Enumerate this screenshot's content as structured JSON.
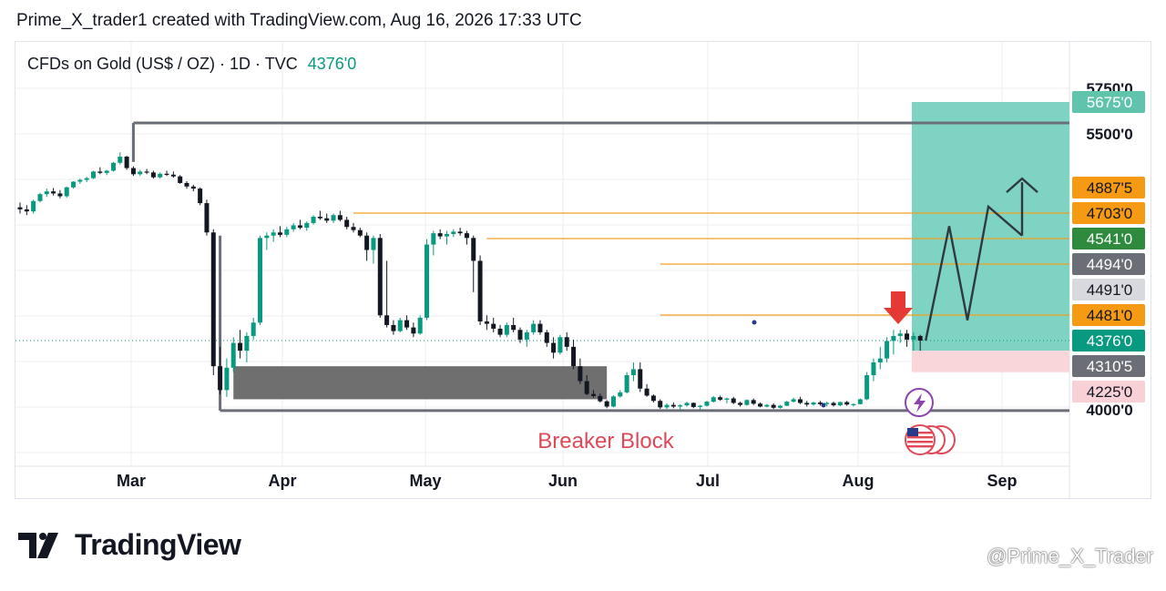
{
  "header": {
    "caption": "Prime_X_trader1 created with TradingView.com, Aug 16, 2026 17:33 UTC"
  },
  "symbol": {
    "name": "CFDs on Gold (US$ / OZ) · 1D · TVC",
    "last_price": "4376'0"
  },
  "annotation": {
    "breaker_label": "Breaker Block"
  },
  "brand": {
    "name": "TradingView",
    "watermark": "@Prime_X_Trader"
  },
  "colors": {
    "up": "#089981",
    "down": "#131722",
    "target_zone": "#7fd3c2",
    "stop_zone": "#f8d6d9",
    "level_line": "#f0a020",
    "breaker_text": "#e04858",
    "arrow": "#e53935"
  },
  "chart_data": {
    "type": "candlestick",
    "x_ticks": [
      "Mar",
      "Apr",
      "May",
      "Jun",
      "Jul",
      "Aug",
      "Sep"
    ],
    "y_axis_labels": [
      {
        "value": 5750,
        "text": "5750'0",
        "style": "plain"
      },
      {
        "value": 5675,
        "text": "5675'0",
        "style": "target"
      },
      {
        "value": 5500,
        "text": "5500'0",
        "style": "plain"
      },
      {
        "value": 4887.5,
        "text": "4887'5",
        "style": "orange"
      },
      {
        "value": 4703,
        "text": "4703'0",
        "style": "orange"
      },
      {
        "value": 4541,
        "text": "4541'0",
        "style": "green"
      },
      {
        "value": 4494,
        "text": "4494'0",
        "style": "gray"
      },
      {
        "value": 4491,
        "text": "4491'0",
        "style": "lightgray"
      },
      {
        "value": 4481,
        "text": "4481'0",
        "style": "orange"
      },
      {
        "value": 4376,
        "text": "4376'0",
        "style": "last"
      },
      {
        "value": 4310.5,
        "text": "4310'5",
        "style": "gray"
      },
      {
        "value": 4225,
        "text": "4225'0",
        "style": "pink"
      },
      {
        "value": 4000,
        "text": "4000'0",
        "style": "plain"
      }
    ],
    "candles": [
      [
        4745,
        4780,
        4700,
        4730
      ],
      [
        4730,
        4760,
        4690,
        4715
      ],
      [
        4715,
        4800,
        4700,
        4790
      ],
      [
        4790,
        4850,
        4780,
        4840
      ],
      [
        4840,
        4880,
        4820,
        4860
      ],
      [
        4860,
        4885,
        4830,
        4845
      ],
      [
        4845,
        4870,
        4810,
        4825
      ],
      [
        4825,
        4900,
        4815,
        4890
      ],
      [
        4890,
        4960,
        4880,
        4955
      ],
      [
        4955,
        4990,
        4930,
        4975
      ],
      [
        4975,
        5010,
        4950,
        4995
      ],
      [
        4995,
        5080,
        4985,
        5070
      ],
      [
        5070,
        5120,
        5040,
        5055
      ],
      [
        5055,
        5090,
        5030,
        5080
      ],
      [
        5080,
        5180,
        5070,
        5170
      ],
      [
        5170,
        5290,
        5150,
        5240
      ],
      [
        5240,
        5250,
        5090,
        5110
      ],
      [
        5110,
        5130,
        5020,
        5040
      ],
      [
        5040,
        5090,
        5020,
        5070
      ],
      [
        5070,
        5100,
        5040,
        5060
      ],
      [
        5060,
        5080,
        4990,
        5005
      ],
      [
        5005,
        5060,
        4990,
        5045
      ],
      [
        5045,
        5080,
        5020,
        5035
      ],
      [
        5035,
        5070,
        5000,
        5015
      ],
      [
        5015,
        5030,
        4930,
        4940
      ],
      [
        4940,
        4960,
        4880,
        4900
      ],
      [
        4900,
        4920,
        4860,
        4880
      ],
      [
        4880,
        4890,
        4760,
        4775
      ],
      [
        4775,
        4800,
        4560,
        4580
      ],
      [
        4580,
        4600,
        4280,
        4310
      ],
      [
        4310,
        4360,
        4190,
        4230
      ],
      [
        4230,
        4330,
        4160,
        4305
      ],
      [
        4305,
        4390,
        4290,
        4370
      ],
      [
        4370,
        4420,
        4330,
        4350
      ],
      [
        4350,
        4410,
        4320,
        4395
      ],
      [
        4395,
        4470,
        4380,
        4450
      ],
      [
        4450,
        4560,
        4440,
        4545
      ],
      [
        4545,
        4580,
        4520,
        4560
      ],
      [
        4560,
        4600,
        4535,
        4580
      ],
      [
        4580,
        4620,
        4550,
        4565
      ],
      [
        4565,
        4615,
        4550,
        4600
      ],
      [
        4600,
        4640,
        4585,
        4625
      ],
      [
        4625,
        4660,
        4600,
        4610
      ],
      [
        4610,
        4650,
        4590,
        4640
      ],
      [
        4640,
        4690,
        4630,
        4680
      ],
      [
        4680,
        4720,
        4660,
        4670
      ],
      [
        4670,
        4700,
        4640,
        4655
      ],
      [
        4655,
        4700,
        4640,
        4690
      ],
      [
        4690,
        4720,
        4650,
        4660
      ],
      [
        4660,
        4680,
        4600,
        4615
      ],
      [
        4615,
        4640,
        4580,
        4595
      ],
      [
        4595,
        4610,
        4550,
        4560
      ],
      [
        4560,
        4580,
        4500,
        4520
      ],
      [
        4520,
        4560,
        4495,
        4545
      ],
      [
        4545,
        4570,
        4470,
        4480
      ],
      [
        4480,
        4500,
        4430,
        4440
      ],
      [
        4440,
        4460,
        4400,
        4415
      ],
      [
        4415,
        4470,
        4410,
        4460
      ],
      [
        4460,
        4480,
        4420,
        4430
      ],
      [
        4430,
        4450,
        4390,
        4405
      ],
      [
        4405,
        4480,
        4400,
        4470
      ],
      [
        4470,
        4540,
        4460,
        4530
      ],
      [
        4530,
        4590,
        4510,
        4575
      ],
      [
        4575,
        4600,
        4540,
        4555
      ],
      [
        4555,
        4590,
        4530,
        4570
      ],
      [
        4570,
        4600,
        4550,
        4585
      ],
      [
        4585,
        4610,
        4560,
        4575
      ],
      [
        4575,
        4590,
        4530,
        4545
      ],
      [
        4545,
        4560,
        4490,
        4500
      ],
      [
        4500,
        4510,
        4440,
        4455
      ],
      [
        4455,
        4480,
        4420,
        4445
      ],
      [
        4445,
        4470,
        4410,
        4425
      ],
      [
        4425,
        4440,
        4390,
        4400
      ],
      [
        4400,
        4450,
        4390,
        4440
      ],
      [
        4440,
        4470,
        4410,
        4420
      ],
      [
        4420,
        4430,
        4370,
        4380
      ],
      [
        4380,
        4420,
        4360,
        4410
      ],
      [
        4410,
        4460,
        4400,
        4445
      ],
      [
        4445,
        4460,
        4400,
        4410
      ],
      [
        4410,
        4420,
        4360,
        4370
      ],
      [
        4370,
        4390,
        4330,
        4345
      ],
      [
        4345,
        4400,
        4340,
        4390
      ],
      [
        4390,
        4410,
        4350,
        4360
      ],
      [
        4360,
        4380,
        4300,
        4310
      ],
      [
        4310,
        4330,
        4250,
        4260
      ],
      [
        4260,
        4280,
        4180,
        4195
      ],
      [
        4195,
        4230,
        4150,
        4170
      ],
      [
        4170,
        4200,
        4090,
        4105
      ],
      [
        4105,
        4120,
        4020,
        4040
      ],
      [
        4040,
        4180,
        4030,
        4165
      ],
      [
        4165,
        4230,
        4150,
        4215
      ],
      [
        4215,
        4290,
        4200,
        4280
      ],
      [
        4280,
        4320,
        4260,
        4300
      ],
      [
        4300,
        4320,
        4220,
        4235
      ],
      [
        4235,
        4250,
        4160,
        4175
      ],
      [
        4175,
        4190,
        4090,
        4110
      ],
      [
        4110,
        4130,
        4010,
        4030
      ],
      [
        4030,
        4080,
        4010,
        4060
      ],
      [
        4060,
        4090,
        4020,
        4040
      ],
      [
        4040,
        4070,
        4000,
        4055
      ],
      [
        4055,
        4100,
        4040,
        4085
      ],
      [
        4085,
        4090,
        4020,
        4035
      ],
      [
        4035,
        4060,
        4000,
        4050
      ],
      [
        4050,
        4110,
        4040,
        4100
      ],
      [
        4100,
        4170,
        4090,
        4155
      ],
      [
        4155,
        4175,
        4110,
        4125
      ],
      [
        4125,
        4150,
        4080,
        4140
      ],
      [
        4140,
        4160,
        4070,
        4085
      ],
      [
        4085,
        4100,
        4040,
        4060
      ],
      [
        4060,
        4130,
        4050,
        4120
      ],
      [
        4120,
        4140,
        4060,
        4075
      ],
      [
        4075,
        4090,
        4030,
        4040
      ],
      [
        4040,
        4070,
        4030,
        4060
      ],
      [
        4060,
        4080,
        4010,
        4025
      ],
      [
        4025,
        4060,
        4015,
        4050
      ],
      [
        4050,
        4110,
        4045,
        4100
      ],
      [
        4100,
        4150,
        4090,
        4130
      ],
      [
        4130,
        4160,
        4070,
        4085
      ],
      [
        4085,
        4110,
        4040,
        4065
      ],
      [
        4065,
        4100,
        4050,
        4090
      ],
      [
        4090,
        4110,
        4050,
        4070
      ],
      [
        4070,
        4100,
        4040,
        4085
      ],
      [
        4085,
        4100,
        4040,
        4055
      ],
      [
        4055,
        4100,
        4045,
        4095
      ],
      [
        4095,
        4110,
        4050,
        4065
      ],
      [
        4065,
        4080,
        4040,
        4070
      ],
      [
        4070,
        4140,
        4065,
        4130
      ],
      [
        4130,
        4290,
        4120,
        4280
      ],
      [
        4280,
        4330,
        4260,
        4320
      ],
      [
        4320,
        4360,
        4300,
        4330
      ],
      [
        4330,
        4390,
        4320,
        4375
      ],
      [
        4375,
        4420,
        4340,
        4395
      ],
      [
        4395,
        4420,
        4370,
        4405
      ],
      [
        4405,
        4420,
        4360,
        4380
      ],
      [
        4380,
        4410,
        4350,
        4395
      ],
      [
        4395,
        4400,
        4350,
        4376
      ]
    ],
    "levels": [
      4703,
      4541,
      4494,
      4481
    ],
    "range_box": {
      "high": 5560,
      "low": 3990
    },
    "breaker_block": {
      "high": 4310,
      "low": 4130
    },
    "target_zone": {
      "entry": 4350,
      "target": 5675
    },
    "stop_zone": {
      "entry": 4350,
      "stop": 4290
    },
    "projection": [
      4376,
      4620,
      4460,
      4750,
      4560,
      4990,
      4900
    ]
  }
}
